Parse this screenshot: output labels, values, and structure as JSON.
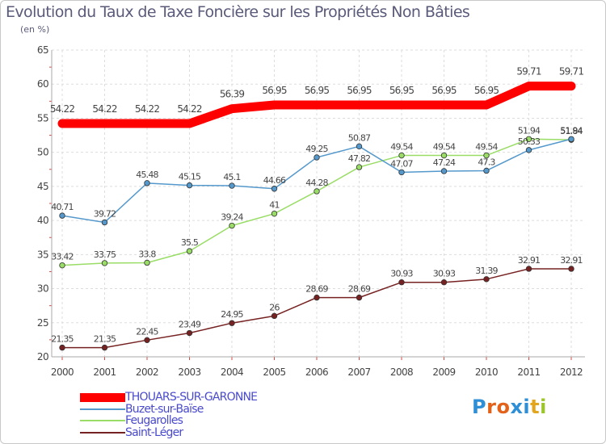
{
  "header": {
    "title": "Evolution du Taux de Taxe Foncière sur les Propriétés Non Bâties",
    "unit": "(en %)"
  },
  "brand": {
    "logo_text": "Proxiti",
    "letter_colors": [
      "#2f8fd6",
      "#e2621b",
      "#e2621b",
      "#2f8fd6",
      "#2f8fd6",
      "#e2a51b",
      "#9bc52b"
    ]
  },
  "chart_data": {
    "type": "line",
    "x": [
      "2000",
      "2001",
      "2002",
      "2003",
      "2004",
      "2005",
      "2006",
      "2007",
      "2008",
      "2009",
      "2010",
      "2011",
      "2012"
    ],
    "ylim": [
      20,
      65
    ],
    "yticks": [
      "20",
      "25",
      "30",
      "35",
      "40",
      "45",
      "50",
      "55",
      "60",
      "65"
    ],
    "grid": true,
    "legend_position": "bottom-left",
    "series": [
      {
        "name": "THOUARS-SUR-GARONNE",
        "color": "#ff0000",
        "values": [
          54.22,
          54.22,
          54.22,
          54.22,
          56.39,
          56.95,
          56.95,
          56.95,
          56.95,
          56.95,
          56.95,
          59.71,
          59.71
        ],
        "labels": [
          "54.22",
          "54.22",
          "54.22",
          "54.22",
          "56.39",
          "56.95",
          "56.95",
          "56.95",
          "56.95",
          "56.95",
          "56.95",
          "59.71",
          "59.71"
        ]
      },
      {
        "name": "Buzet-sur-Baïse",
        "color": "#5599cc",
        "values": [
          40.71,
          39.72,
          45.48,
          45.15,
          45.1,
          44.66,
          49.25,
          50.87,
          47.07,
          47.24,
          47.3,
          50.33,
          51.94
        ],
        "labels": [
          "40.71",
          "39.72",
          "45.48",
          "45.15",
          "45.1",
          "44.66",
          "49.25",
          "50.87",
          "47.07",
          "47.24",
          "47.3",
          "50.33",
          "51.94"
        ]
      },
      {
        "name": "Feugarolles",
        "color": "#99dd66",
        "values": [
          33.42,
          33.75,
          33.8,
          35.5,
          39.24,
          41,
          44.28,
          47.82,
          49.54,
          49.54,
          49.54,
          51.94,
          51.84
        ],
        "labels": [
          "33.42",
          "33.75",
          "33.8",
          "35.5",
          "39.24",
          "41",
          "44.28",
          "47.82",
          "49.54",
          "49.54",
          "49.54",
          "51.94",
          "51.84"
        ]
      },
      {
        "name": "Saint-Léger",
        "color": "#772222",
        "values": [
          21.35,
          21.35,
          22.45,
          23.49,
          24.95,
          26,
          28.69,
          28.69,
          30.93,
          30.93,
          31.39,
          32.91,
          32.91
        ],
        "labels": [
          "21.35",
          "21.35",
          "22.45",
          "23.49",
          "24.95",
          "26",
          "28.69",
          "28.69",
          "30.93",
          "30.93",
          "31.39",
          "32.91",
          "32.91"
        ]
      }
    ]
  }
}
